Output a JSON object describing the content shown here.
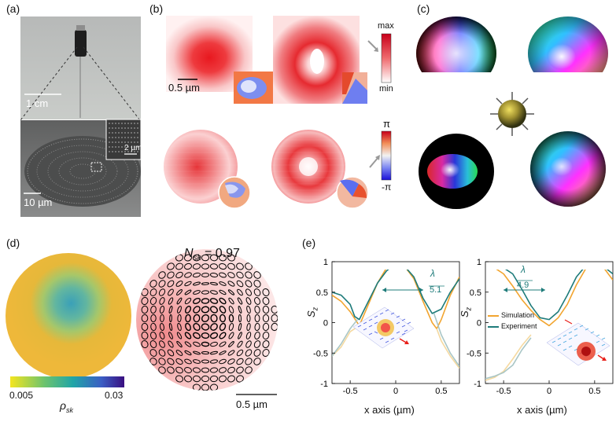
{
  "panels": {
    "a": {
      "label": "(a)",
      "scale_top": "1 cm",
      "scale_bottom": "10 µm",
      "scale_inset": "2 µm"
    },
    "b": {
      "label": "(b)",
      "scale": "0.5 µm",
      "amp_max": "max",
      "amp_min": "min",
      "phase_max": "π",
      "phase_min": "-π"
    },
    "c": {
      "label": "(c)"
    },
    "d": {
      "label": "(d)",
      "nsk": "N",
      "nsk_sub": "sk",
      "nsk_value": " = 0.97",
      "cbar_min": "0.005",
      "cbar_max": "0.03",
      "cbar_label": "ρ",
      "cbar_label_sub": "sk",
      "scale": "0.5 µm"
    },
    "e": {
      "label": "(e)"
    }
  },
  "chart_data": [
    {
      "type": "line",
      "xlabel": "x axis (µm)",
      "ylabel": "S",
      "ylabel_sub": "z",
      "xlim": [
        -0.7,
        0.7
      ],
      "ylim": [
        -1,
        1
      ],
      "x_ticks": [
        "-0.5",
        "0",
        "0.5"
      ],
      "y_ticks": [
        "1",
        "0.5",
        "0",
        "-0.5",
        "-1"
      ],
      "annotation_num": "λ",
      "annotation_den": "5.1",
      "series": [
        {
          "color": "#f2a530",
          "x": [
            -0.7,
            -0.6,
            -0.5,
            -0.4,
            -0.3,
            -0.2,
            -0.1,
            0,
            0.1,
            0.2,
            0.3,
            0.4,
            0.45,
            0.5,
            0.6,
            0.7
          ],
          "y": [
            0.45,
            0.35,
            0.18,
            -0.05,
            0.3,
            0.65,
            0.9,
            1.0,
            0.92,
            0.72,
            0.35,
            0.0,
            -0.1,
            0.05,
            0.45,
            0.75
          ]
        },
        {
          "color": "#1e7b7a",
          "x": [
            -0.7,
            -0.6,
            -0.5,
            -0.45,
            -0.4,
            -0.3,
            -0.2,
            -0.1,
            0,
            0.1,
            0.2,
            0.3,
            0.4,
            0.5,
            0.6,
            0.7
          ],
          "y": [
            0.5,
            0.45,
            0.3,
            0.1,
            0.05,
            0.35,
            0.65,
            0.85,
            0.97,
            0.92,
            0.75,
            0.4,
            0.15,
            0.22,
            0.5,
            0.72
          ]
        },
        {
          "color": "#f5d9a0",
          "x": [
            -0.7,
            -0.6,
            -0.5,
            -0.4
          ],
          "y": [
            -0.55,
            -0.4,
            -0.15,
            -0.05
          ]
        },
        {
          "color": "#a9c6c6",
          "x": [
            -0.7,
            -0.6,
            -0.5,
            -0.42
          ],
          "y": [
            -0.55,
            -0.35,
            -0.1,
            0.05
          ]
        },
        {
          "color": "#f5d9a0",
          "x": [
            0.45,
            0.5,
            0.6,
            0.7
          ],
          "y": [
            -0.1,
            -0.3,
            -0.55,
            -0.75
          ]
        },
        {
          "color": "#a9c6c6",
          "x": [
            0.42,
            0.5,
            0.6,
            0.7
          ],
          "y": [
            0.15,
            -0.2,
            -0.5,
            -0.72
          ]
        }
      ]
    },
    {
      "type": "line",
      "xlabel": "x axis (µm)",
      "ylabel": "S",
      "ylabel_sub": "z",
      "xlim": [
        -0.7,
        0.7
      ],
      "ylim": [
        -1,
        1
      ],
      "x_ticks": [
        "-0.5",
        "0",
        "0.5"
      ],
      "y_ticks": [
        "1",
        "0.5",
        "0",
        "-0.5",
        "-1"
      ],
      "annotation_num": "λ",
      "annotation_den": "4.9",
      "legend": [
        "Simulation",
        "Experiment"
      ],
      "series": [
        {
          "name": "Simulation",
          "color": "#f2a530",
          "x": [
            -0.7,
            -0.6,
            -0.5,
            -0.4,
            -0.3,
            -0.2,
            -0.1,
            0,
            0.1,
            0.2,
            0.3,
            0.4,
            0.5,
            0.6,
            0.7
          ],
          "y": [
            0.95,
            0.9,
            0.8,
            0.6,
            0.38,
            0.2,
            0.05,
            -0.05,
            0.08,
            0.3,
            0.62,
            0.88,
            1.0,
            0.9,
            0.7
          ]
        },
        {
          "name": "Experiment",
          "color": "#1e7b7a",
          "x": [
            -0.7,
            -0.6,
            -0.5,
            -0.4,
            -0.3,
            -0.2,
            -0.1,
            0,
            0.1,
            0.2,
            0.3,
            0.4,
            0.5,
            0.6,
            0.7
          ],
          "y": [
            0.92,
            0.93,
            0.9,
            0.8,
            0.55,
            0.28,
            0.08,
            0.05,
            0.18,
            0.45,
            0.75,
            0.93,
            0.98,
            0.92,
            0.8
          ]
        },
        {
          "color": "#f5d9a0",
          "x": [
            -0.7,
            -0.6,
            -0.5,
            -0.4,
            -0.3,
            -0.2
          ],
          "y": [
            -0.95,
            -0.9,
            -0.8,
            -0.6,
            -0.38,
            -0.2
          ]
        },
        {
          "color": "#a9c6c6",
          "x": [
            -0.7,
            -0.6,
            -0.5,
            -0.4,
            -0.3,
            -0.2
          ],
          "y": [
            -0.92,
            -0.88,
            -0.82,
            -0.7,
            -0.45,
            -0.25
          ]
        }
      ]
    }
  ]
}
